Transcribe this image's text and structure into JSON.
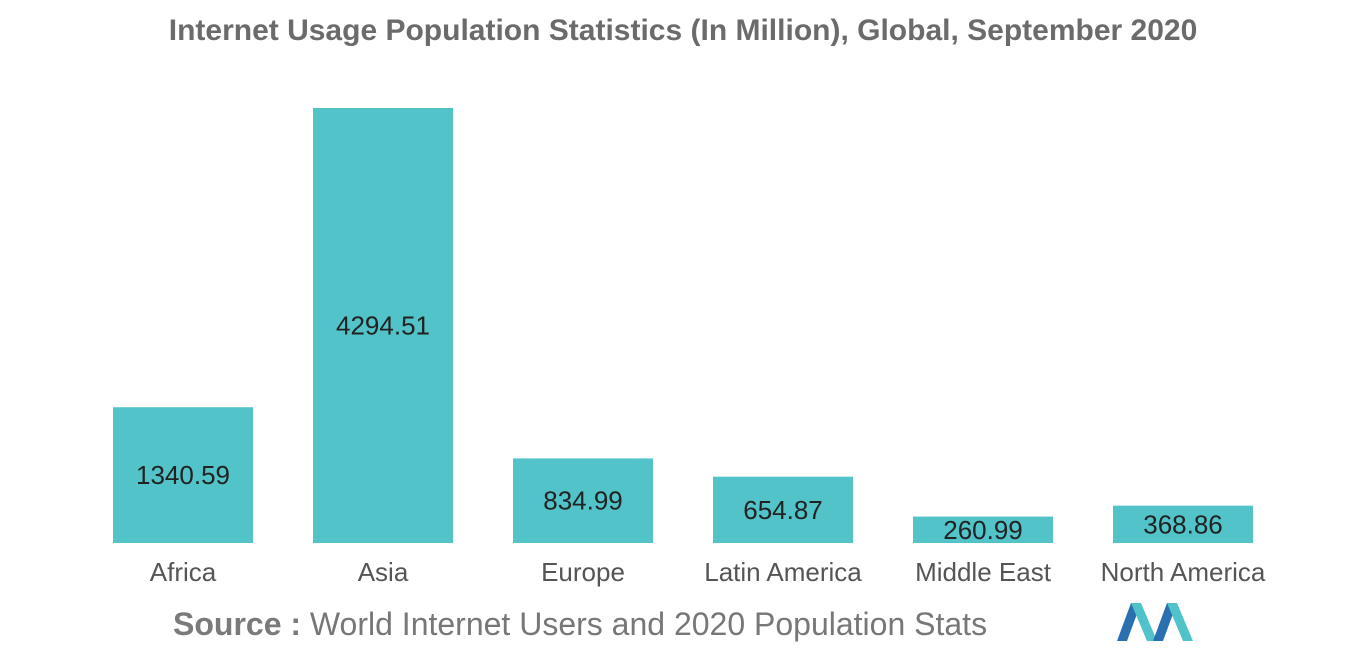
{
  "chart_data": {
    "type": "bar",
    "title": "Internet Usage Population Statistics (In Million), Global, September 2020",
    "categories": [
      "Africa",
      "Asia",
      "Europe",
      "Latin America",
      "Middle East",
      "North America"
    ],
    "values": [
      1340.59,
      4294.51,
      834.99,
      654.87,
      260.99,
      368.86
    ],
    "value_labels": [
      "1340.59",
      "4294.51",
      "834.99",
      "654.87",
      "260.99",
      "368.86"
    ],
    "xlabel": "",
    "ylabel": "",
    "ylim": [
      0,
      4294.51
    ],
    "grid": false,
    "legend": "none",
    "bar_color": "#52c3c9"
  },
  "source": {
    "label": "Source :",
    "text": "World Internet Users and 2020 Population Stats"
  },
  "logo": {
    "icon": "brand-logo-icon",
    "colors": [
      "#2a6fb0",
      "#4fc3c9"
    ]
  }
}
